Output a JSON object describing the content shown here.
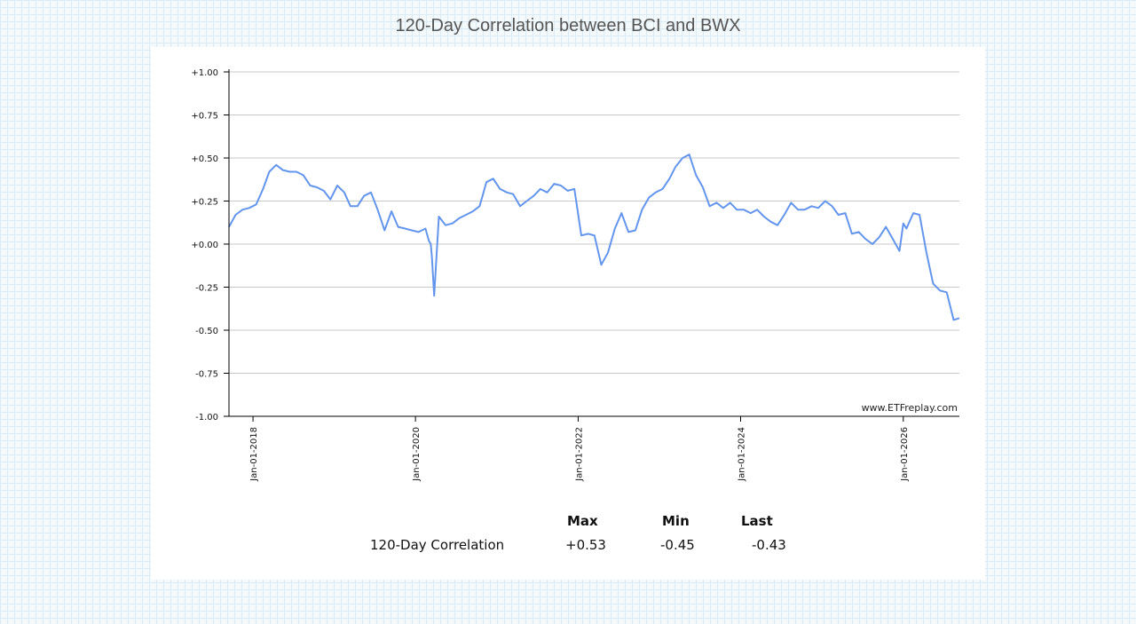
{
  "chart_data": {
    "type": "line",
    "title": "120-Day Correlation between BCI and BWX",
    "watermark": "www.ETFreplay.com",
    "ylim": [
      -1.0,
      1.0
    ],
    "y_ticks": [
      "+1.00",
      "+0.75",
      "+0.50",
      "+0.25",
      "+0.00",
      "-0.25",
      "-0.50",
      "-0.75",
      "-1.00"
    ],
    "y_tick_values": [
      1.0,
      0.75,
      0.5,
      0.25,
      0.0,
      -0.25,
      -0.5,
      -0.75,
      -1.0
    ],
    "x_ticks": [
      "Jan-01-2018",
      "Jan-01-2020",
      "Jan-01-2022",
      "Jan-01-2024",
      "Jan-01-2026"
    ],
    "x_tick_values": [
      "2018-01-01",
      "2020-01-01",
      "2022-01-01",
      "2024-01-01",
      "2026-01-01"
    ],
    "xlim": [
      "2017-09-15",
      "2026-09-10"
    ],
    "grid": "horizontal",
    "line_color": "#6495ED",
    "series": [
      {
        "x": [
          "2017-09-15",
          "2017-10-15",
          "2017-11-15",
          "2017-12-15",
          "2018-01-15",
          "2018-02-15",
          "2018-03-15",
          "2018-04-15",
          "2018-05-15",
          "2018-06-15",
          "2018-07-15",
          "2018-08-15",
          "2018-09-15",
          "2018-10-15",
          "2018-11-15",
          "2018-12-15",
          "2019-01-15",
          "2019-02-15",
          "2019-03-15",
          "2019-04-15",
          "2019-05-15",
          "2019-06-15",
          "2019-07-15",
          "2019-08-15",
          "2019-09-15",
          "2019-10-15",
          "2019-11-15",
          "2019-12-15",
          "2020-01-15",
          "2020-02-15",
          "2020-03-01",
          "2020-03-10",
          "2020-03-15",
          "2020-03-25",
          "2020-04-15",
          "2020-05-15",
          "2020-06-15",
          "2020-07-15",
          "2020-08-15",
          "2020-09-15",
          "2020-10-15",
          "2020-11-15",
          "2020-12-15",
          "2021-01-15",
          "2021-02-15",
          "2021-03-15",
          "2021-04-15",
          "2021-05-15",
          "2021-06-15",
          "2021-07-15",
          "2021-08-15",
          "2021-09-15",
          "2021-10-15",
          "2021-11-15",
          "2021-12-15",
          "2022-01-15",
          "2022-02-15",
          "2022-03-15",
          "2022-04-15",
          "2022-05-15",
          "2022-06-15",
          "2022-07-15",
          "2022-08-15",
          "2022-09-15",
          "2022-10-15",
          "2022-11-15",
          "2022-12-15",
          "2023-01-15",
          "2023-02-15",
          "2023-03-15",
          "2023-04-15",
          "2023-05-15",
          "2023-06-15",
          "2023-07-15",
          "2023-08-15",
          "2023-09-15",
          "2023-10-15",
          "2023-11-15",
          "2023-12-15",
          "2024-01-15",
          "2024-02-15",
          "2024-03-15",
          "2024-04-15",
          "2024-05-15",
          "2024-06-15",
          "2024-07-15",
          "2024-08-15",
          "2024-09-15",
          "2024-10-15",
          "2024-11-15",
          "2024-12-15",
          "2025-01-15",
          "2025-02-15",
          "2025-03-15",
          "2025-04-15",
          "2025-05-15",
          "2025-06-15",
          "2025-07-15",
          "2025-08-15",
          "2025-09-15",
          "2025-10-15",
          "2025-11-15",
          "2025-12-15",
          "2026-01-01",
          "2026-01-15",
          "2026-02-15",
          "2026-03-15",
          "2026-04-15",
          "2026-05-15",
          "2026-06-15",
          "2026-07-15",
          "2026-08-15",
          "2026-09-10"
        ],
        "y": [
          0.1,
          0.17,
          0.2,
          0.21,
          0.23,
          0.32,
          0.42,
          0.46,
          0.43,
          0.42,
          0.42,
          0.4,
          0.34,
          0.33,
          0.31,
          0.26,
          0.34,
          0.3,
          0.22,
          0.22,
          0.28,
          0.3,
          0.2,
          0.08,
          0.19,
          0.1,
          0.09,
          0.08,
          0.07,
          0.09,
          0.02,
          0.0,
          -0.08,
          -0.3,
          0.16,
          0.11,
          0.12,
          0.15,
          0.17,
          0.19,
          0.22,
          0.36,
          0.38,
          0.32,
          0.3,
          0.29,
          0.22,
          0.25,
          0.28,
          0.32,
          0.3,
          0.35,
          0.34,
          0.31,
          0.32,
          0.05,
          0.06,
          0.05,
          -0.12,
          -0.05,
          0.09,
          0.18,
          0.07,
          0.08,
          0.2,
          0.27,
          0.3,
          0.32,
          0.38,
          0.45,
          0.5,
          0.52,
          0.4,
          0.33,
          0.22,
          0.24,
          0.21,
          0.24,
          0.2,
          0.2,
          0.18,
          0.2,
          0.16,
          0.13,
          0.11,
          0.17,
          0.24,
          0.2,
          0.2,
          0.22,
          0.21,
          0.25,
          0.22,
          0.17,
          0.18,
          0.06,
          0.07,
          0.03,
          0.0,
          0.04,
          0.1,
          0.03,
          -0.04,
          0.12,
          0.09,
          0.18,
          0.17,
          -0.05,
          -0.23,
          -0.27,
          -0.28,
          -0.44,
          -0.43
        ]
      }
    ]
  },
  "stats": {
    "headers": [
      "Max",
      "Min",
      "Last"
    ],
    "row_label": "120-Day Correlation",
    "values": [
      "+0.53",
      "-0.45",
      "-0.43"
    ]
  }
}
